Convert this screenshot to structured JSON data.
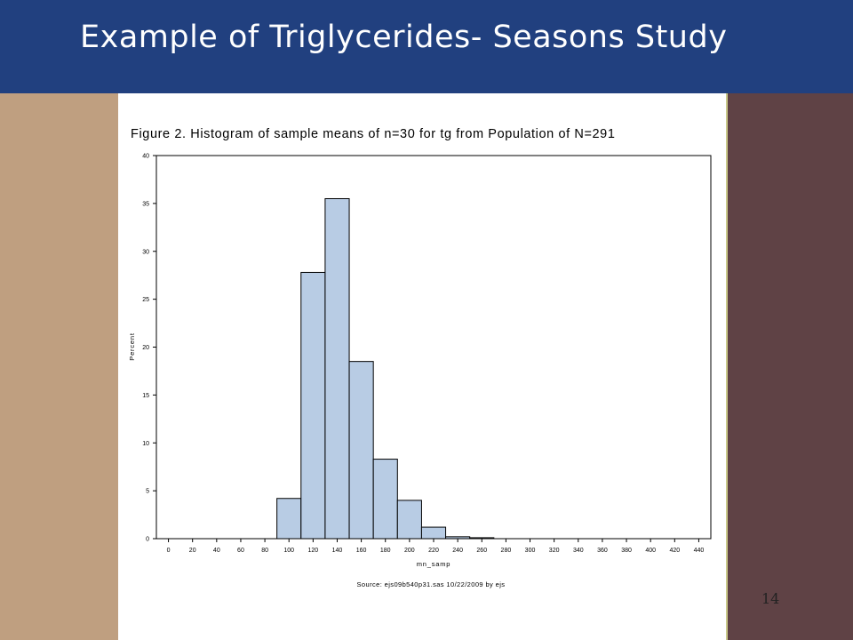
{
  "slide": {
    "title": "Example of Triglycerides- Seasons Study",
    "page_number": "14",
    "colors": {
      "header": "#21407f",
      "left_band": "#bf9f80",
      "right_band": "#5f4245",
      "bar_fill": "#b8cce4",
      "bar_stroke": "#000000"
    }
  },
  "chart_data": {
    "type": "bar",
    "title": "Figure 2.  Histogram of sample means of n=30 for tg from Population of N=291",
    "xlabel": "mn_samp",
    "ylabel": "Percent",
    "source": "Source: ejs09b540p31.sas 10/22/2009 by ejs",
    "xlim": [
      -10,
      450
    ],
    "ylim": [
      0,
      40
    ],
    "bin_width": 20,
    "x_ticks": [
      0,
      20,
      40,
      60,
      80,
      100,
      120,
      140,
      160,
      180,
      200,
      220,
      240,
      260,
      280,
      300,
      320,
      340,
      360,
      380,
      400,
      420,
      440
    ],
    "y_ticks": [
      0,
      5,
      10,
      15,
      20,
      25,
      30,
      35,
      40
    ],
    "bins": [
      {
        "x0": 90,
        "x1": 110,
        "value": 4.2
      },
      {
        "x0": 110,
        "x1": 130,
        "value": 27.8
      },
      {
        "x0": 130,
        "x1": 150,
        "value": 35.5
      },
      {
        "x0": 150,
        "x1": 170,
        "value": 18.5
      },
      {
        "x0": 170,
        "x1": 190,
        "value": 8.3
      },
      {
        "x0": 190,
        "x1": 210,
        "value": 4.0
      },
      {
        "x0": 210,
        "x1": 230,
        "value": 1.2
      },
      {
        "x0": 230,
        "x1": 250,
        "value": 0.2
      },
      {
        "x0": 250,
        "x1": 270,
        "value": 0.1
      }
    ]
  }
}
